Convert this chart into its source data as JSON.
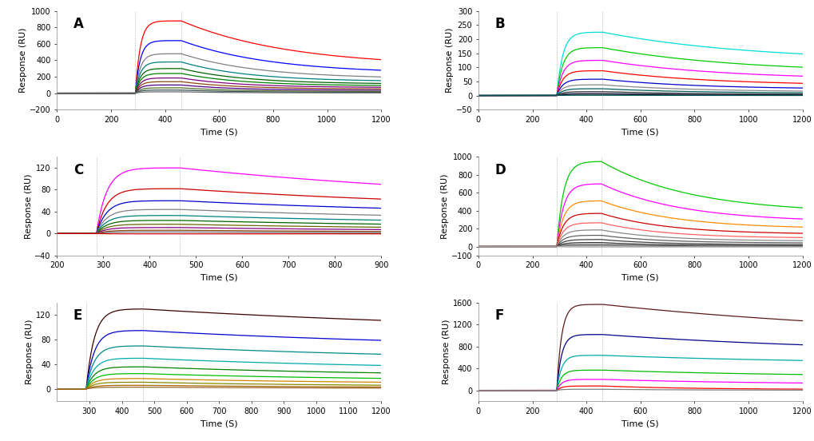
{
  "panels": [
    {
      "label": "A",
      "xlim": [
        0,
        1200
      ],
      "ylim": [
        -200,
        1000
      ],
      "yticks": [
        -200,
        0,
        200,
        400,
        600,
        800,
        1000
      ],
      "xticks": [
        0,
        200,
        400,
        600,
        800,
        1000,
        1200
      ],
      "xlabel": "Time (S)",
      "ylabel": "Response (RU)",
      "t_on": 290,
      "t_off": 460,
      "t_end": 1200,
      "curves": [
        {
          "color": "#FF0000",
          "rmax": 880,
          "plateau": 320,
          "kon": 0.055,
          "koff": 0.0025
        },
        {
          "color": "#0000FF",
          "rmax": 640,
          "plateau": 235,
          "kon": 0.055,
          "koff": 0.003
        },
        {
          "color": "#808080",
          "rmax": 480,
          "plateau": 175,
          "kon": 0.055,
          "koff": 0.0035
        },
        {
          "color": "#008080",
          "rmax": 380,
          "plateau": 140,
          "kon": 0.055,
          "koff": 0.004
        },
        {
          "color": "#006400",
          "rmax": 300,
          "plateau": 110,
          "kon": 0.055,
          "koff": 0.0042
        },
        {
          "color": "#008000",
          "rmax": 240,
          "plateau": 88,
          "kon": 0.055,
          "koff": 0.0044
        },
        {
          "color": "#800080",
          "rmax": 185,
          "plateau": 68,
          "kon": 0.055,
          "koff": 0.0046
        },
        {
          "color": "#8B4513",
          "rmax": 140,
          "plateau": 50,
          "kon": 0.055,
          "koff": 0.0048
        },
        {
          "color": "#4B0082",
          "rmax": 100,
          "plateau": 34,
          "kon": 0.055,
          "koff": 0.005
        },
        {
          "color": "#556B2F",
          "rmax": 65,
          "plateau": 20,
          "kon": 0.055,
          "koff": 0.005
        },
        {
          "color": "#2F4F4F",
          "rmax": 38,
          "plateau": 10,
          "kon": 0.055,
          "koff": 0.005
        },
        {
          "color": "#696969",
          "rmax": 16,
          "plateau": 3,
          "kon": 0.055,
          "koff": 0.005
        }
      ]
    },
    {
      "label": "B",
      "xlim": [
        0,
        1200
      ],
      "ylim": [
        -50,
        300
      ],
      "yticks": [
        -50,
        0,
        50,
        100,
        150,
        200,
        250,
        300
      ],
      "xticks": [
        0,
        200,
        400,
        600,
        800,
        1000,
        1200
      ],
      "xlabel": "Time (S)",
      "ylabel": "Response (RU)",
      "t_on": 290,
      "t_off": 460,
      "t_end": 1200,
      "curves": [
        {
          "color": "#00DDDD",
          "rmax": 225,
          "plateau": 120,
          "kon": 0.045,
          "koff": 0.0018
        },
        {
          "color": "#00CC00",
          "rmax": 170,
          "plateau": 80,
          "kon": 0.045,
          "koff": 0.002
        },
        {
          "color": "#FF00FF",
          "rmax": 125,
          "plateau": 55,
          "kon": 0.045,
          "koff": 0.0022
        },
        {
          "color": "#FF0000",
          "rmax": 88,
          "plateau": 35,
          "kon": 0.045,
          "koff": 0.0025
        },
        {
          "color": "#0000CC",
          "rmax": 58,
          "plateau": 22,
          "kon": 0.045,
          "koff": 0.0028
        },
        {
          "color": "#888888",
          "rmax": 38,
          "plateau": 13,
          "kon": 0.045,
          "koff": 0.003
        },
        {
          "color": "#006060",
          "rmax": 24,
          "plateau": 8,
          "kon": 0.045,
          "koff": 0.003
        },
        {
          "color": "#404040",
          "rmax": 14,
          "plateau": 4,
          "kon": 0.045,
          "koff": 0.003
        },
        {
          "color": "#303060",
          "rmax": 8,
          "plateau": 2,
          "kon": 0.045,
          "koff": 0.003
        },
        {
          "color": "#202020",
          "rmax": 4,
          "plateau": 1,
          "kon": 0.045,
          "koff": 0.003
        },
        {
          "color": "#005555",
          "rmax": 1,
          "plateau": 0,
          "kon": 0.045,
          "koff": 0.003
        }
      ]
    },
    {
      "label": "C",
      "xlim": [
        200,
        900
      ],
      "ylim": [
        -40,
        140
      ],
      "yticks": [
        -40,
        0,
        40,
        80,
        120
      ],
      "xticks": [
        200,
        300,
        400,
        500,
        600,
        700,
        800,
        900
      ],
      "xlabel": "Time (S)",
      "ylabel": "Response (RU)",
      "t_on": 285,
      "t_off": 465,
      "t_end": 900,
      "curves": [
        {
          "color": "#FF00FF",
          "rmax": 120,
          "plateau": 46,
          "kon": 0.045,
          "koff": 0.0012
        },
        {
          "color": "#CC0000",
          "rmax": 82,
          "plateau": 38,
          "kon": 0.045,
          "koff": 0.0013
        },
        {
          "color": "#0000CC",
          "rmax": 60,
          "plateau": 30,
          "kon": 0.045,
          "koff": 0.0014
        },
        {
          "color": "#808080",
          "rmax": 44,
          "plateau": 22,
          "kon": 0.045,
          "koff": 0.0015
        },
        {
          "color": "#008080",
          "rmax": 33,
          "plateau": 16,
          "kon": 0.045,
          "koff": 0.0016
        },
        {
          "color": "#006400",
          "rmax": 24,
          "plateau": 11,
          "kon": 0.045,
          "koff": 0.0017
        },
        {
          "color": "#666600",
          "rmax": 17,
          "plateau": 7,
          "kon": 0.045,
          "koff": 0.0018
        },
        {
          "color": "#800080",
          "rmax": 11,
          "plateau": 4,
          "kon": 0.045,
          "koff": 0.0018
        },
        {
          "color": "#8B4513",
          "rmax": 6,
          "plateau": 2,
          "kon": 0.045,
          "koff": 0.0018
        },
        {
          "color": "#696969",
          "rmax": 3,
          "plateau": 0.5,
          "kon": 0.045,
          "koff": 0.0018
        },
        {
          "color": "#CC0000",
          "rmax": -0.5,
          "plateau": -0.5,
          "kon": 0.045,
          "koff": 0.0
        }
      ]
    },
    {
      "label": "D",
      "xlim": [
        0,
        1200
      ],
      "ylim": [
        -100,
        1000
      ],
      "yticks": [
        -100,
        0,
        200,
        400,
        600,
        800,
        1000
      ],
      "xticks": [
        0,
        200,
        400,
        600,
        800,
        1000,
        1200
      ],
      "xlabel": "Time (S)",
      "ylabel": "Response (RU)",
      "t_on": 290,
      "t_off": 455,
      "t_end": 1200,
      "curves": [
        {
          "color": "#00CC00",
          "rmax": 950,
          "plateau": 370,
          "kon": 0.04,
          "koff": 0.003
        },
        {
          "color": "#FF00FF",
          "rmax": 700,
          "plateau": 270,
          "kon": 0.04,
          "koff": 0.0033
        },
        {
          "color": "#FF8C00",
          "rmax": 510,
          "plateau": 195,
          "kon": 0.04,
          "koff": 0.0036
        },
        {
          "color": "#CC0000",
          "rmax": 370,
          "plateau": 135,
          "kon": 0.04,
          "koff": 0.004
        },
        {
          "color": "#FF6060",
          "rmax": 265,
          "plateau": 92,
          "kon": 0.04,
          "koff": 0.0042
        },
        {
          "color": "#888888",
          "rmax": 185,
          "plateau": 60,
          "kon": 0.04,
          "koff": 0.0044
        },
        {
          "color": "#606060",
          "rmax": 125,
          "plateau": 38,
          "kon": 0.04,
          "koff": 0.0046
        },
        {
          "color": "#404040",
          "rmax": 78,
          "plateau": 20,
          "kon": 0.04,
          "koff": 0.0048
        },
        {
          "color": "#303030",
          "rmax": 44,
          "plateau": 9,
          "kon": 0.04,
          "koff": 0.005
        },
        {
          "color": "#505050",
          "rmax": 22,
          "plateau": 2,
          "kon": 0.04,
          "koff": 0.005
        },
        {
          "color": "#909090",
          "rmax": 8,
          "plateau": 0,
          "kon": 0.04,
          "koff": 0.005
        },
        {
          "color": "#A0A0A0",
          "rmax": -5,
          "plateau": -5,
          "kon": 0.04,
          "koff": 0.0
        }
      ]
    },
    {
      "label": "E",
      "xlim": [
        200,
        1200
      ],
      "ylim": [
        -20,
        140
      ],
      "yticks": [
        0,
        40,
        80,
        120
      ],
      "xticks": [
        300,
        400,
        500,
        600,
        700,
        800,
        900,
        1000,
        1100,
        1200
      ],
      "xlabel": "Time (S)",
      "ylabel": "Response (RU)",
      "t_on": 290,
      "t_off": 465,
      "t_end": 1200,
      "curves": [
        {
          "color": "#3D0000",
          "rmax": 130,
          "plateau": 84,
          "kon": 0.04,
          "koff": 0.0007
        },
        {
          "color": "#0000CC",
          "rmax": 95,
          "plateau": 62,
          "kon": 0.04,
          "koff": 0.0009
        },
        {
          "color": "#008888",
          "rmax": 70,
          "plateau": 44,
          "kon": 0.04,
          "koff": 0.001
        },
        {
          "color": "#00AAAA",
          "rmax": 50,
          "plateau": 30,
          "kon": 0.04,
          "koff": 0.0012
        },
        {
          "color": "#008000",
          "rmax": 36,
          "plateau": 20,
          "kon": 0.04,
          "koff": 0.0013
        },
        {
          "color": "#00BB00",
          "rmax": 25,
          "plateau": 13,
          "kon": 0.04,
          "koff": 0.0014
        },
        {
          "color": "#CC8800",
          "rmax": 17,
          "plateau": 8,
          "kon": 0.04,
          "koff": 0.0015
        },
        {
          "color": "#888800",
          "rmax": 11,
          "plateau": 4,
          "kon": 0.04,
          "koff": 0.0016
        },
        {
          "color": "#AA6600",
          "rmax": 6,
          "plateau": 2,
          "kon": 0.04,
          "koff": 0.0016
        },
        {
          "color": "#996633",
          "rmax": 3,
          "plateau": 0.8,
          "kon": 0.04,
          "koff": 0.0016
        }
      ]
    },
    {
      "label": "F",
      "xlim": [
        0,
        1200
      ],
      "ylim": [
        -200,
        1600
      ],
      "yticks": [
        0,
        400,
        800,
        1200,
        1600
      ],
      "xticks": [
        0,
        200,
        400,
        600,
        800,
        1000,
        1200
      ],
      "xlabel": "Time (S)",
      "ylabel": "Response (RU)",
      "t_on": 290,
      "t_off": 460,
      "t_end": 1200,
      "curves": [
        {
          "color": "#5C1A1A",
          "rmax": 1570,
          "plateau": 900,
          "kon": 0.055,
          "koff": 0.0008
        },
        {
          "color": "#000088",
          "rmax": 1020,
          "plateau": 660,
          "kon": 0.055,
          "koff": 0.001
        },
        {
          "color": "#00AAAA",
          "rmax": 640,
          "plateau": 480,
          "kon": 0.055,
          "koff": 0.0012
        },
        {
          "color": "#00BB00",
          "rmax": 370,
          "plateau": 245,
          "kon": 0.055,
          "koff": 0.0014
        },
        {
          "color": "#FF00FF",
          "rmax": 200,
          "plateau": 105,
          "kon": 0.055,
          "koff": 0.0016
        },
        {
          "color": "#FF0000",
          "rmax": 80,
          "plateau": 15,
          "kon": 0.055,
          "koff": 0.003
        },
        {
          "color": "#808080",
          "rmax": 20,
          "plateau": 2,
          "kon": 0.055,
          "koff": 0.003
        }
      ]
    }
  ],
  "bg_color": "#FFFFFF",
  "label_fontsize": 12,
  "axis_fontsize": 8,
  "tick_fontsize": 7
}
